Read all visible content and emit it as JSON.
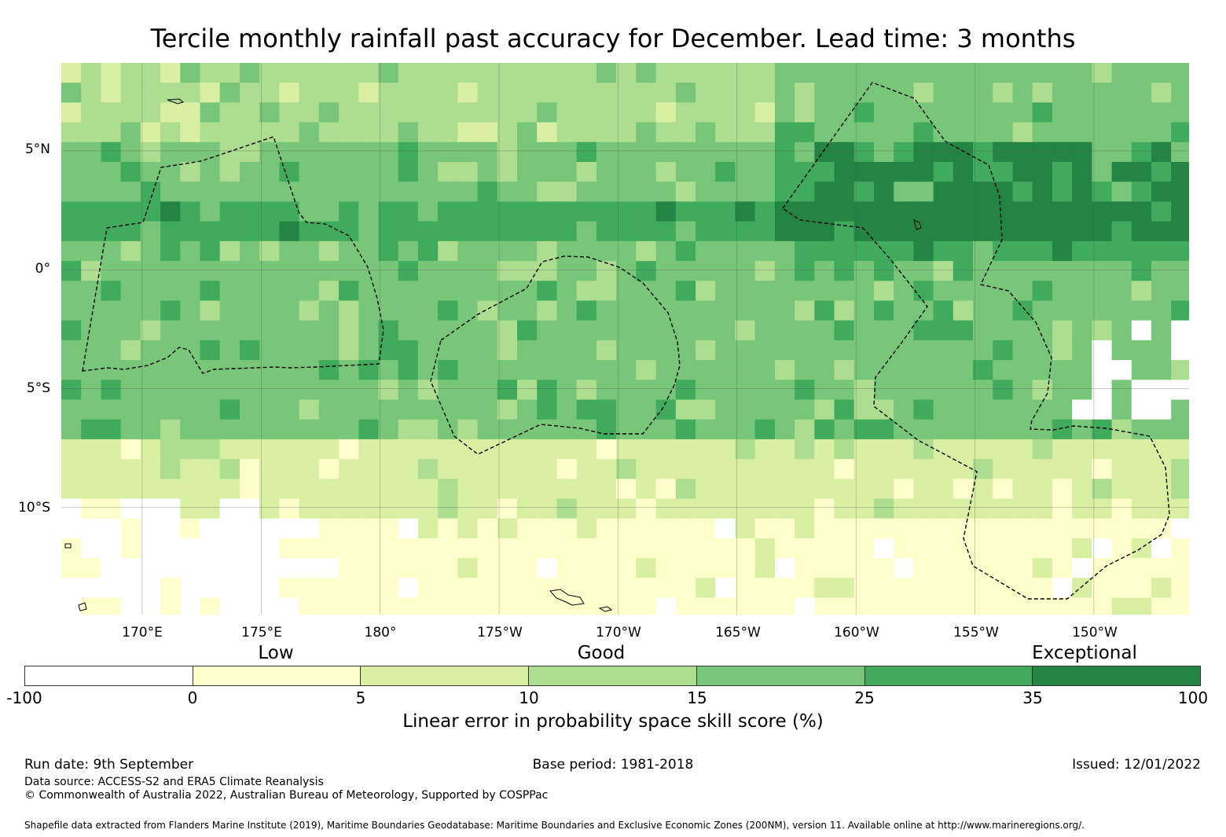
{
  "title": "Tercile monthly rainfall past accuracy for December. Lead time: 3 months",
  "map": {
    "lat_labels": [
      "5°N",
      "0°",
      "5°S",
      "10°S"
    ],
    "lon_labels": [
      "170°E",
      "175°E",
      "180°",
      "175°W",
      "170°W",
      "165°W",
      "160°W",
      "155°W",
      "150°W"
    ],
    "lat_range": [
      -14.5,
      8.7
    ],
    "lon_range": [
      166.6,
      214.0
    ],
    "grid_lats": [
      5,
      0,
      -5,
      -10
    ],
    "grid_lons": [
      170,
      175,
      180,
      185,
      190,
      195,
      200,
      205,
      210
    ],
    "category_by_latitude": [
      {
        "lat_from": 5.5,
        "lat_to": 8.7,
        "band": "10-15"
      },
      {
        "lat_from": 3.0,
        "lat_to": 5.5,
        "band": "15-25"
      },
      {
        "lat_from": 1.0,
        "lat_to": 3.0,
        "band": "25-35"
      },
      {
        "lat_from": -4.0,
        "lat_to": 1.0,
        "band": "15-25"
      },
      {
        "lat_from": -7.5,
        "lat_to": -4.0,
        "band": "15-25"
      },
      {
        "lat_from": -10.5,
        "lat_to": -7.5,
        "band": "5-10"
      },
      {
        "lat_from": -14.5,
        "lat_to": -10.5,
        "band": "0-5"
      }
    ]
  },
  "legend": {
    "categories": [
      "Low",
      "Good",
      "Exceptional"
    ],
    "ticks": [
      "-100",
      "0",
      "5",
      "10",
      "15",
      "25",
      "35",
      "100"
    ],
    "colors": [
      "#ffffff",
      "#ffffcc",
      "#d9f0a3",
      "#addd8e",
      "#78c679",
      "#41ab5d",
      "#238443"
    ],
    "label": "Linear error in probability space skill score (%)"
  },
  "footer": {
    "run_date": "Run date: 9th September",
    "base_period": "Base period: 1981-2018",
    "issued": "Issued: 12/01/2022",
    "data_source": "Data source: ACCESS-S2 and ERA5 Climate Reanalysis",
    "copyright": "© Commonwealth of Australia 2022, Australian Bureau of Meteorology, Supported by COSPPac",
    "shapefile": "Shapefile data extracted from Flanders Marine Institute (2019), Maritime Boundaries Geodatabase: Maritime Boundaries and Exclusive Economic Zones (200NM), version 11. Available online at http://www.marineregions.org/."
  }
}
